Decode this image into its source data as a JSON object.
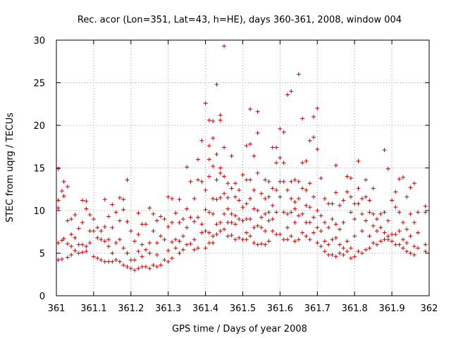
{
  "chart_data": {
    "type": "scatter",
    "title": "Rec. acor (Lon=351, Lat=43, h=HE), days 360-361, 2008, window 004",
    "xlabel": "GPS time / Days of year 2008",
    "ylabel": "STEC from uqrg / TECUs",
    "xlim": [
      361,
      362
    ],
    "ylim": [
      0,
      30
    ],
    "xticks": [
      "361",
      "361.1",
      "361.2",
      "361.3",
      "361.4",
      "361.5",
      "361.6",
      "361.7",
      "361.8",
      "361.9",
      "362"
    ],
    "yticks": [
      "0",
      "5",
      "10",
      "15",
      "20",
      "25",
      "30"
    ],
    "grid": true,
    "marker": "plus",
    "color": "#cc0000",
    "points": [
      [
        361.005,
        14.9
      ],
      [
        361.005,
        11.2
      ],
      [
        361.005,
        10.3
      ],
      [
        361.005,
        6.2
      ],
      [
        361.005,
        4.2
      ],
      [
        361.015,
        12.3
      ],
      [
        361.015,
        6.5
      ],
      [
        361.015,
        4.3
      ],
      [
        361.02,
        13.4
      ],
      [
        361.02,
        11.7
      ],
      [
        361.02,
        6.7
      ],
      [
        361.03,
        12.8
      ],
      [
        361.03,
        8.8
      ],
      [
        361.03,
        6.1
      ],
      [
        361.03,
        4.5
      ],
      [
        361.04,
        9.0
      ],
      [
        361.04,
        7.2
      ],
      [
        361.04,
        5.8
      ],
      [
        361.04,
        4.8
      ],
      [
        361.05,
        9.5
      ],
      [
        361.05,
        6.8
      ],
      [
        361.05,
        5.3
      ],
      [
        361.06,
        7.9
      ],
      [
        361.06,
        6.0
      ],
      [
        361.06,
        5.0
      ],
      [
        361.07,
        11.2
      ],
      [
        361.07,
        8.6
      ],
      [
        361.07,
        6.0
      ],
      [
        361.07,
        5.1
      ],
      [
        361.08,
        11.1
      ],
      [
        361.08,
        10.2
      ],
      [
        361.08,
        5.8
      ],
      [
        361.08,
        5.2
      ],
      [
        361.09,
        9.5
      ],
      [
        361.09,
        7.6
      ],
      [
        361.09,
        6.2
      ],
      [
        361.1,
        9.0
      ],
      [
        361.1,
        7.6
      ],
      [
        361.1,
        4.6
      ],
      [
        361.11,
        8.0
      ],
      [
        361.11,
        6.8
      ],
      [
        361.11,
        4.4
      ],
      [
        361.12,
        7.6
      ],
      [
        361.12,
        6.6
      ],
      [
        361.12,
        4.2
      ],
      [
        361.13,
        11.3
      ],
      [
        361.13,
        8.1
      ],
      [
        361.13,
        6.4
      ],
      [
        361.13,
        4.0
      ],
      [
        361.14,
        9.3
      ],
      [
        361.14,
        6.6
      ],
      [
        361.14,
        5.8
      ],
      [
        361.14,
        4.0
      ],
      [
        361.15,
        10.7
      ],
      [
        361.15,
        8.0
      ],
      [
        361.15,
        5.0
      ],
      [
        361.15,
        4.0
      ],
      [
        361.16,
        9.8
      ],
      [
        361.16,
        6.2
      ],
      [
        361.16,
        4.2
      ],
      [
        361.17,
        11.5
      ],
      [
        361.17,
        8.8
      ],
      [
        361.17,
        6.6
      ],
      [
        361.17,
        4.0
      ],
      [
        361.18,
        11.3
      ],
      [
        361.18,
        10.1
      ],
      [
        361.18,
        5.6
      ],
      [
        361.18,
        3.6
      ],
      [
        361.19,
        13.6
      ],
      [
        361.19,
        8.7
      ],
      [
        361.19,
        5.0
      ],
      [
        361.19,
        3.4
      ],
      [
        361.2,
        7.6
      ],
      [
        361.2,
        4.2
      ],
      [
        361.2,
        3.2
      ],
      [
        361.21,
        6.4
      ],
      [
        361.21,
        4.2
      ],
      [
        361.21,
        3.0
      ],
      [
        361.22,
        9.7
      ],
      [
        361.22,
        7.2
      ],
      [
        361.22,
        5.2
      ],
      [
        361.22,
        3.2
      ],
      [
        361.23,
        8.4
      ],
      [
        361.23,
        6.0
      ],
      [
        361.23,
        4.6
      ],
      [
        361.23,
        3.4
      ],
      [
        361.24,
        8.4
      ],
      [
        361.24,
        5.4
      ],
      [
        361.24,
        3.4
      ],
      [
        361.25,
        10.3
      ],
      [
        361.25,
        6.2
      ],
      [
        361.25,
        5.0
      ],
      [
        361.25,
        3.2
      ],
      [
        361.26,
        9.6
      ],
      [
        361.26,
        7.6
      ],
      [
        361.26,
        3.6
      ],
      [
        361.27,
        8.8
      ],
      [
        361.27,
        6.2
      ],
      [
        361.27,
        4.8
      ],
      [
        361.27,
        3.4
      ],
      [
        361.28,
        9.3
      ],
      [
        361.28,
        7.0
      ],
      [
        361.28,
        3.6
      ],
      [
        361.29,
        9.0
      ],
      [
        361.29,
        6.6
      ],
      [
        361.29,
        4.2
      ],
      [
        361.3,
        11.6
      ],
      [
        361.3,
        8.1
      ],
      [
        361.3,
        5.3
      ],
      [
        361.3,
        4.0
      ],
      [
        361.31,
        11.4
      ],
      [
        361.31,
        8.6
      ],
      [
        361.31,
        6.3
      ],
      [
        361.31,
        4.4
      ],
      [
        361.32,
        9.7
      ],
      [
        361.32,
        6.6
      ],
      [
        361.32,
        5.6
      ],
      [
        361.33,
        11.3
      ],
      [
        361.33,
        8.6
      ],
      [
        361.33,
        6.4
      ],
      [
        361.33,
        5.0
      ],
      [
        361.34,
        9.0
      ],
      [
        361.34,
        7.0
      ],
      [
        361.34,
        5.4
      ],
      [
        361.35,
        15.1
      ],
      [
        361.35,
        10.2
      ],
      [
        361.35,
        8.0
      ],
      [
        361.35,
        6.0
      ],
      [
        361.36,
        13.4
      ],
      [
        361.36,
        9.2
      ],
      [
        361.36,
        6.1
      ],
      [
        361.37,
        11.4
      ],
      [
        361.37,
        8.7
      ],
      [
        361.37,
        6.6
      ],
      [
        361.37,
        5.4
      ],
      [
        361.38,
        16.0
      ],
      [
        361.38,
        13.6
      ],
      [
        361.38,
        9.2
      ],
      [
        361.38,
        5.6
      ],
      [
        361.39,
        18.2
      ],
      [
        361.39,
        13.4
      ],
      [
        361.39,
        8.4
      ],
      [
        361.39,
        7.4
      ],
      [
        361.4,
        22.6
      ],
      [
        361.4,
        12.4
      ],
      [
        361.4,
        10.1
      ],
      [
        361.4,
        7.6
      ],
      [
        361.4,
        5.6
      ],
      [
        361.41,
        20.6
      ],
      [
        361.41,
        17.6
      ],
      [
        361.41,
        16.0
      ],
      [
        361.41,
        14.0
      ],
      [
        361.41,
        9.8
      ],
      [
        361.41,
        7.4
      ],
      [
        361.41,
        6.2
      ],
      [
        361.42,
        20.5
      ],
      [
        361.42,
        18.5
      ],
      [
        361.42,
        15.2
      ],
      [
        361.42,
        11.4
      ],
      [
        361.42,
        9.6
      ],
      [
        361.42,
        7.0
      ],
      [
        361.42,
        6.2
      ],
      [
        361.43,
        24.8
      ],
      [
        361.43,
        16.6
      ],
      [
        361.43,
        13.6
      ],
      [
        361.43,
        11.3
      ],
      [
        361.43,
        8.4
      ],
      [
        361.43,
        7.2
      ],
      [
        361.44,
        21.2
      ],
      [
        361.44,
        20.6
      ],
      [
        361.44,
        15.0
      ],
      [
        361.44,
        14.4
      ],
      [
        361.44,
        11.5
      ],
      [
        361.44,
        8.6
      ],
      [
        361.44,
        7.6
      ],
      [
        361.45,
        29.3
      ],
      [
        361.45,
        17.4
      ],
      [
        361.45,
        14.0
      ],
      [
        361.45,
        12.0
      ],
      [
        361.45,
        9.6
      ],
      [
        361.45,
        7.8
      ],
      [
        361.46,
        13.2
      ],
      [
        361.46,
        11.5
      ],
      [
        361.46,
        10.2
      ],
      [
        361.46,
        8.6
      ],
      [
        361.46,
        7.0
      ],
      [
        361.47,
        16.4
      ],
      [
        361.47,
        12.6
      ],
      [
        361.47,
        9.6
      ],
      [
        361.47,
        8.6
      ],
      [
        361.47,
        7.1
      ],
      [
        361.48,
        13.2
      ],
      [
        361.48,
        11.6
      ],
      [
        361.48,
        9.4
      ],
      [
        361.48,
        8.4
      ],
      [
        361.48,
        6.6
      ],
      [
        361.49,
        12.4
      ],
      [
        361.49,
        11.2
      ],
      [
        361.49,
        9.0
      ],
      [
        361.49,
        6.8
      ],
      [
        361.5,
        14.2
      ],
      [
        361.5,
        10.4
      ],
      [
        361.5,
        8.8
      ],
      [
        361.5,
        6.6
      ],
      [
        361.51,
        17.6
      ],
      [
        361.51,
        13.6
      ],
      [
        361.51,
        10.8
      ],
      [
        361.51,
        9.0
      ],
      [
        361.51,
        7.4
      ],
      [
        361.51,
        6.6
      ],
      [
        361.52,
        21.9
      ],
      [
        361.52,
        17.8
      ],
      [
        361.52,
        13.6
      ],
      [
        361.52,
        11.4
      ],
      [
        361.52,
        9.0
      ],
      [
        361.52,
        7.0
      ],
      [
        361.53,
        16.4
      ],
      [
        361.53,
        12.4
      ],
      [
        361.53,
        10.2
      ],
      [
        361.53,
        8.0
      ],
      [
        361.53,
        6.2
      ],
      [
        361.54,
        21.6
      ],
      [
        361.54,
        19.1
      ],
      [
        361.54,
        14.4
      ],
      [
        361.54,
        10.0
      ],
      [
        361.54,
        8.2
      ],
      [
        361.54,
        6.0
      ],
      [
        361.55,
        12.0
      ],
      [
        361.55,
        9.2
      ],
      [
        361.55,
        8.0
      ],
      [
        361.55,
        6.1
      ],
      [
        361.56,
        13.6
      ],
      [
        361.56,
        11.4
      ],
      [
        361.56,
        9.6
      ],
      [
        361.56,
        7.6
      ],
      [
        361.56,
        6.0
      ],
      [
        361.57,
        13.4
      ],
      [
        361.57,
        11.6
      ],
      [
        361.57,
        9.8
      ],
      [
        361.57,
        8.8
      ],
      [
        361.57,
        6.4
      ],
      [
        361.58,
        17.4
      ],
      [
        361.58,
        12.6
      ],
      [
        361.58,
        10.6
      ],
      [
        361.58,
        9.0
      ],
      [
        361.58,
        7.6
      ],
      [
        361.59,
        17.4
      ],
      [
        361.59,
        15.6
      ],
      [
        361.59,
        12.4
      ],
      [
        361.59,
        9.8
      ],
      [
        361.59,
        7.2
      ],
      [
        361.6,
        19.6
      ],
      [
        361.6,
        16.2
      ],
      [
        361.6,
        13.4
      ],
      [
        361.6,
        11.6
      ],
      [
        361.6,
        7.2
      ],
      [
        361.61,
        19.2
      ],
      [
        361.61,
        15.6
      ],
      [
        361.61,
        13.4
      ],
      [
        361.61,
        9.8
      ],
      [
        361.61,
        6.6
      ],
      [
        361.62,
        23.6
      ],
      [
        361.62,
        12.4
      ],
      [
        361.62,
        9.6
      ],
      [
        361.62,
        8.0
      ],
      [
        361.62,
        6.6
      ],
      [
        361.63,
        24.0
      ],
      [
        361.63,
        13.4
      ],
      [
        361.63,
        11.4
      ],
      [
        361.63,
        9.8
      ],
      [
        361.63,
        7.0
      ],
      [
        361.64,
        13.6
      ],
      [
        361.64,
        11.0
      ],
      [
        361.64,
        10.2
      ],
      [
        361.64,
        8.6
      ],
      [
        361.64,
        6.4
      ],
      [
        361.65,
        26.0
      ],
      [
        361.65,
        13.4
      ],
      [
        361.65,
        11.4
      ],
      [
        361.65,
        9.4
      ],
      [
        361.65,
        6.6
      ],
      [
        361.66,
        20.8
      ],
      [
        361.66,
        15.6
      ],
      [
        361.66,
        12.6
      ],
      [
        361.66,
        9.6
      ],
      [
        361.66,
        7.4
      ],
      [
        361.67,
        15.8
      ],
      [
        361.67,
        12.4
      ],
      [
        361.67,
        10.6
      ],
      [
        361.67,
        8.6
      ],
      [
        361.67,
        7.0
      ],
      [
        361.68,
        18.2
      ],
      [
        361.68,
        13.2
      ],
      [
        361.68,
        10.4
      ],
      [
        361.68,
        8.6
      ],
      [
        361.68,
        6.6
      ],
      [
        361.69,
        21.0
      ],
      [
        361.69,
        18.6
      ],
      [
        361.69,
        11.6
      ],
      [
        361.69,
        9.2
      ],
      [
        361.69,
        7.4
      ],
      [
        361.7,
        22.0
      ],
      [
        361.7,
        17.2
      ],
      [
        361.7,
        10.0
      ],
      [
        361.7,
        8.0
      ],
      [
        361.7,
        6.2
      ],
      [
        361.71,
        13.8
      ],
      [
        361.71,
        9.4
      ],
      [
        361.71,
        7.6
      ],
      [
        361.71,
        5.8
      ],
      [
        361.72,
        11.4
      ],
      [
        361.72,
        8.6
      ],
      [
        361.72,
        6.4
      ],
      [
        361.72,
        5.2
      ],
      [
        361.73,
        10.8
      ],
      [
        361.73,
        8.0
      ],
      [
        361.73,
        6.0
      ],
      [
        361.73,
        4.8
      ],
      [
        361.74,
        10.8
      ],
      [
        361.74,
        9.0
      ],
      [
        361.74,
        6.6
      ],
      [
        361.74,
        4.8
      ],
      [
        361.75,
        15.3
      ],
      [
        361.75,
        12.1
      ],
      [
        361.75,
        8.4
      ],
      [
        361.75,
        6.8
      ],
      [
        361.75,
        4.6
      ],
      [
        361.76,
        10.6
      ],
      [
        361.76,
        7.8
      ],
      [
        361.76,
        6.0
      ],
      [
        361.76,
        5.0
      ],
      [
        361.77,
        11.2
      ],
      [
        361.77,
        8.6
      ],
      [
        361.77,
        5.6
      ],
      [
        361.77,
        4.8
      ],
      [
        361.78,
        14.0
      ],
      [
        361.78,
        12.2
      ],
      [
        361.78,
        6.4
      ],
      [
        361.78,
        5.2
      ],
      [
        361.79,
        13.8
      ],
      [
        361.79,
        11.6
      ],
      [
        361.79,
        9.8
      ],
      [
        361.79,
        5.6
      ],
      [
        361.79,
        4.4
      ],
      [
        361.8,
        10.8
      ],
      [
        361.8,
        9.0
      ],
      [
        361.8,
        7.0
      ],
      [
        361.8,
        4.6
      ],
      [
        361.81,
        15.8
      ],
      [
        361.81,
        12.6
      ],
      [
        361.81,
        10.8
      ],
      [
        361.81,
        5.2
      ],
      [
        361.82,
        11.4
      ],
      [
        361.82,
        9.6
      ],
      [
        361.82,
        7.6
      ],
      [
        361.82,
        5.0
      ],
      [
        361.83,
        13.6
      ],
      [
        361.83,
        11.6
      ],
      [
        361.83,
        8.8
      ],
      [
        361.83,
        5.4
      ],
      [
        361.84,
        11.2
      ],
      [
        361.84,
        9.8
      ],
      [
        361.84,
        7.0
      ],
      [
        361.84,
        5.6
      ],
      [
        361.85,
        12.6
      ],
      [
        361.85,
        9.6
      ],
      [
        361.85,
        8.2
      ],
      [
        361.85,
        6.2
      ],
      [
        361.86,
        9.0
      ],
      [
        361.86,
        7.6
      ],
      [
        361.86,
        6.0
      ],
      [
        361.87,
        9.6
      ],
      [
        361.87,
        8.0
      ],
      [
        361.87,
        6.4
      ],
      [
        361.88,
        17.1
      ],
      [
        361.88,
        9.8
      ],
      [
        361.88,
        7.4
      ],
      [
        361.88,
        6.6
      ],
      [
        361.89,
        14.9
      ],
      [
        361.89,
        8.8
      ],
      [
        361.89,
        7.0
      ],
      [
        361.89,
        6.6
      ],
      [
        361.9,
        11.2
      ],
      [
        361.9,
        7.2
      ],
      [
        361.9,
        6.4
      ],
      [
        361.91,
        12.2
      ],
      [
        361.91,
        10.4
      ],
      [
        361.91,
        7.2
      ],
      [
        361.91,
        6.0
      ],
      [
        361.92,
        13.7
      ],
      [
        361.92,
        9.8
      ],
      [
        361.92,
        7.6
      ],
      [
        361.92,
        6.0
      ],
      [
        361.93,
        13.9
      ],
      [
        361.93,
        8.6
      ],
      [
        361.93,
        6.6
      ],
      [
        361.93,
        5.6
      ],
      [
        361.94,
        11.6
      ],
      [
        361.94,
        7.8
      ],
      [
        361.94,
        6.2
      ],
      [
        361.94,
        5.2
      ],
      [
        361.95,
        12.7
      ],
      [
        361.95,
        9.6
      ],
      [
        361.95,
        7.0
      ],
      [
        361.95,
        5.0
      ],
      [
        361.96,
        13.2
      ],
      [
        361.96,
        8.6
      ],
      [
        361.96,
        5.8
      ],
      [
        361.96,
        4.8
      ],
      [
        361.97,
        9.8
      ],
      [
        361.97,
        7.4
      ],
      [
        361.97,
        5.6
      ],
      [
        361.99,
        10.5
      ],
      [
        361.99,
        9.8
      ],
      [
        361.99,
        6.0
      ],
      [
        361.99,
        5.2
      ]
    ]
  }
}
